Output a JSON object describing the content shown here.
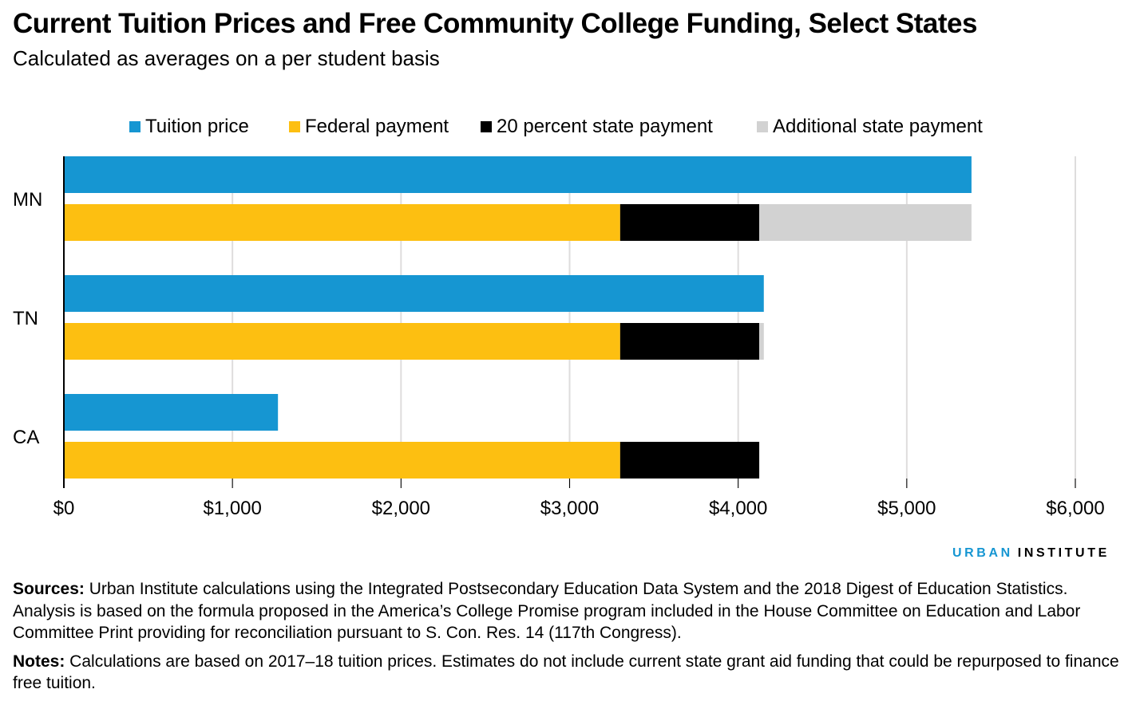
{
  "title": "Current Tuition Prices and Free Community College Funding, Select States",
  "subtitle": "Calculated as averages on a per student basis",
  "logo": {
    "part1": "URBAN",
    "part2": "INSTITUTE"
  },
  "sources": {
    "label": "Sources:",
    "text": " Urban Institute calculations using the Integrated Postsecondary Education Data System and the 2018 Digest of Education Statistics. Analysis is based on the formula proposed in the America’s College Promise program included in the House Committee on Education and Labor Committee Print providing for reconciliation pursuant to S. Con. Res. 14 (117th Congress)."
  },
  "notes": {
    "label": "Notes:",
    "text": " Calculations are based on 2017–18 tuition prices. Estimates do not include current state grant aid funding that could be repurposed to finance free tuition."
  },
  "chart_data": {
    "type": "bar",
    "orientation": "horizontal",
    "categories": [
      "MN",
      "TN",
      "CA"
    ],
    "legend_position": "top",
    "grid": true,
    "xlim": [
      0,
      6000
    ],
    "ticks": [
      0,
      1000,
      2000,
      3000,
      4000,
      5000,
      6000
    ],
    "tick_labels": [
      "$0",
      "$1,000",
      "$2,000",
      "$3,000",
      "$4,000",
      "$5,000",
      "$6,000"
    ],
    "series": [
      {
        "name": "Tuition price",
        "color": "#1696d2",
        "group": "tuition",
        "values": [
          5384,
          4152,
          1270
        ]
      },
      {
        "name": "Federal payment",
        "color": "#fdbf11",
        "group": "funding",
        "values": [
          3300,
          3300,
          3300
        ]
      },
      {
        "name": "20 percent state payment",
        "color": "#000000",
        "group": "funding",
        "values": [
          825,
          825,
          825
        ]
      },
      {
        "name": "Additional state payment",
        "color": "#d2d2d2",
        "group": "funding",
        "values": [
          1259,
          27,
          0
        ]
      }
    ]
  }
}
